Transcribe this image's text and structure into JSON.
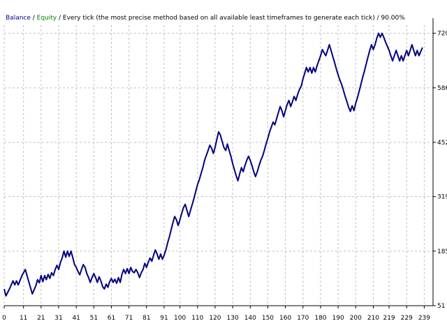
{
  "chart_data": {
    "type": "line",
    "title": "",
    "xlabel": "",
    "ylabel": "",
    "legend": {
      "placement": "top-left",
      "items": [
        {
          "label": "Balance",
          "color": "#000080"
        },
        {
          "label": " / ",
          "color": "#000000"
        },
        {
          "label": "Equity",
          "color": "#008000"
        },
        {
          "label": " / Every tick (the most precise method based on all available least timeframes to generate each tick) / 90.00%",
          "color": "#000000"
        }
      ]
    },
    "x_ticks": [
      "0",
      "11",
      "21",
      "31",
      "41",
      "51",
      "61",
      "71",
      "81",
      "91",
      "100",
      "110",
      "120",
      "130",
      "140",
      "150",
      "160",
      "170",
      "180",
      "190",
      "200",
      "210",
      "219",
      "229",
      "239"
    ],
    "y_ticks": [
      51,
      185,
      319,
      452,
      586,
      720
    ],
    "xlim": [
      0,
      244
    ],
    "ylim": [
      51,
      740
    ],
    "grid": true,
    "series": [
      {
        "color": "#000080",
        "points": [
          [
            0,
            92
          ],
          [
            1,
            75
          ],
          [
            3,
            92
          ],
          [
            5,
            112
          ],
          [
            6,
            102
          ],
          [
            7,
            112
          ],
          [
            8,
            102
          ],
          [
            10,
            124
          ],
          [
            12,
            140
          ],
          [
            14,
            110
          ],
          [
            16,
            80
          ],
          [
            18,
            100
          ],
          [
            19,
            115
          ],
          [
            20,
            107
          ],
          [
            21,
            125
          ],
          [
            22,
            110
          ],
          [
            23,
            125
          ],
          [
            24,
            115
          ],
          [
            25,
            128
          ],
          [
            26,
            118
          ],
          [
            27,
            132
          ],
          [
            28,
            125
          ],
          [
            29,
            140
          ],
          [
            30,
            150
          ],
          [
            31,
            140
          ],
          [
            32,
            157
          ],
          [
            33,
            168
          ],
          [
            34,
            185
          ],
          [
            35,
            170
          ],
          [
            36,
            185
          ],
          [
            37,
            172
          ],
          [
            38,
            185
          ],
          [
            39,
            170
          ],
          [
            40,
            152
          ],
          [
            41,
            145
          ],
          [
            42,
            135
          ],
          [
            43,
            127
          ],
          [
            44,
            140
          ],
          [
            45,
            152
          ],
          [
            46,
            145
          ],
          [
            47,
            130
          ],
          [
            48,
            120
          ],
          [
            49,
            108
          ],
          [
            50,
            120
          ],
          [
            51,
            130
          ],
          [
            52,
            120
          ],
          [
            53,
            108
          ],
          [
            54,
            122
          ],
          [
            55,
            112
          ],
          [
            56,
            98
          ],
          [
            57,
            92
          ],
          [
            58,
            104
          ],
          [
            59,
            96
          ],
          [
            60,
            110
          ],
          [
            61,
            118
          ],
          [
            62,
            108
          ],
          [
            63,
            116
          ],
          [
            64,
            106
          ],
          [
            65,
            120
          ],
          [
            66,
            108
          ],
          [
            67,
            128
          ],
          [
            68,
            140
          ],
          [
            69,
            130
          ],
          [
            70,
            142
          ],
          [
            71,
            130
          ],
          [
            72,
            145
          ],
          [
            73,
            135
          ],
          [
            74,
            132
          ],
          [
            75,
            140
          ],
          [
            76,
            132
          ],
          [
            77,
            120
          ],
          [
            78,
            132
          ],
          [
            79,
            140
          ],
          [
            80,
            155
          ],
          [
            81,
            145
          ],
          [
            82,
            158
          ],
          [
            83,
            168
          ],
          [
            84,
            160
          ],
          [
            85,
            175
          ],
          [
            86,
            188
          ],
          [
            87,
            178
          ],
          [
            88,
            165
          ],
          [
            89,
            178
          ],
          [
            90,
            165
          ],
          [
            91,
            175
          ],
          [
            92,
            188
          ],
          [
            93,
            205
          ],
          [
            94,
            220
          ],
          [
            95,
            238
          ],
          [
            96,
            255
          ],
          [
            97,
            270
          ],
          [
            98,
            262
          ],
          [
            99,
            248
          ],
          [
            100,
            262
          ],
          [
            101,
            278
          ],
          [
            102,
            292
          ],
          [
            103,
            300
          ],
          [
            104,
            285
          ],
          [
            105,
            270
          ],
          [
            106,
            285
          ],
          [
            107,
            300
          ],
          [
            108,
            315
          ],
          [
            109,
            332
          ],
          [
            110,
            348
          ],
          [
            111,
            360
          ],
          [
            112,
            375
          ],
          [
            113,
            390
          ],
          [
            114,
            408
          ],
          [
            115,
            420
          ],
          [
            116,
            432
          ],
          [
            117,
            445
          ],
          [
            118,
            438
          ],
          [
            119,
            425
          ],
          [
            120,
            440
          ],
          [
            121,
            460
          ],
          [
            122,
            478
          ],
          [
            123,
            470
          ],
          [
            124,
            455
          ],
          [
            125,
            440
          ],
          [
            126,
            432
          ],
          [
            127,
            448
          ],
          [
            128,
            432
          ],
          [
            129,
            418
          ],
          [
            130,
            400
          ],
          [
            131,
            385
          ],
          [
            132,
            370
          ],
          [
            133,
            358
          ],
          [
            134,
            375
          ],
          [
            135,
            390
          ],
          [
            136,
            380
          ],
          [
            137,
            395
          ],
          [
            138,
            408
          ],
          [
            139,
            418
          ],
          [
            140,
            408
          ],
          [
            141,
            395
          ],
          [
            142,
            380
          ],
          [
            143,
            368
          ],
          [
            144,
            380
          ],
          [
            145,
            395
          ],
          [
            146,
            408
          ],
          [
            147,
            418
          ],
          [
            148,
            432
          ],
          [
            149,
            448
          ],
          [
            150,
            462
          ],
          [
            151,
            478
          ],
          [
            152,
            490
          ],
          [
            153,
            502
          ],
          [
            154,
            495
          ],
          [
            155,
            510
          ],
          [
            156,
            525
          ],
          [
            157,
            540
          ],
          [
            158,
            530
          ],
          [
            159,
            515
          ],
          [
            160,
            530
          ],
          [
            161,
            545
          ],
          [
            162,
            555
          ],
          [
            163,
            540
          ],
          [
            164,
            552
          ],
          [
            165,
            565
          ],
          [
            166,
            555
          ],
          [
            167,
            570
          ],
          [
            168,
            582
          ],
          [
            169,
            590
          ],
          [
            170,
            608
          ],
          [
            171,
            622
          ],
          [
            172,
            636
          ],
          [
            173,
            625
          ],
          [
            174,
            636
          ],
          [
            175,
            622
          ],
          [
            176,
            636
          ],
          [
            177,
            625
          ],
          [
            178,
            640
          ],
          [
            179,
            652
          ],
          [
            180,
            665
          ],
          [
            181,
            680
          ],
          [
            182,
            672
          ],
          [
            183,
            665
          ],
          [
            184,
            678
          ],
          [
            185,
            692
          ],
          [
            186,
            678
          ],
          [
            187,
            662
          ],
          [
            188,
            648
          ],
          [
            189,
            632
          ],
          [
            190,
            618
          ],
          [
            191,
            605
          ],
          [
            192,
            595
          ],
          [
            193,
            580
          ],
          [
            194,
            565
          ],
          [
            195,
            552
          ],
          [
            196,
            538
          ],
          [
            197,
            528
          ],
          [
            198,
            542
          ],
          [
            199,
            530
          ],
          [
            200,
            548
          ],
          [
            201,
            562
          ],
          [
            202,
            578
          ],
          [
            203,
            595
          ],
          [
            204,
            612
          ],
          [
            205,
            628
          ],
          [
            206,
            645
          ],
          [
            207,
            662
          ],
          [
            208,
            678
          ],
          [
            209,
            692
          ],
          [
            210,
            680
          ],
          [
            211,
            692
          ],
          [
            212,
            708
          ],
          [
            213,
            720
          ],
          [
            214,
            710
          ],
          [
            215,
            720
          ],
          [
            216,
            710
          ],
          [
            217,
            698
          ],
          [
            218,
            688
          ],
          [
            219,
            678
          ],
          [
            220,
            665
          ],
          [
            221,
            652
          ],
          [
            222,
            665
          ],
          [
            223,
            678
          ],
          [
            224,
            665
          ],
          [
            225,
            652
          ],
          [
            226,
            665
          ],
          [
            227,
            652
          ],
          [
            228,
            665
          ],
          [
            229,
            678
          ],
          [
            230,
            665
          ],
          [
            231,
            678
          ],
          [
            232,
            692
          ],
          [
            233,
            678
          ],
          [
            234,
            665
          ],
          [
            235,
            678
          ],
          [
            236,
            665
          ],
          [
            237,
            675
          ],
          [
            238,
            685
          ]
        ]
      }
    ]
  }
}
